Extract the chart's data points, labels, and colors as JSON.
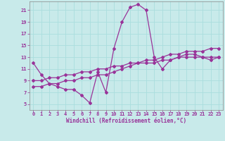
{
  "title": "",
  "xlabel": "Windchill (Refroidissement éolien,°C)",
  "ylabel": "",
  "background_color": "#c8eaea",
  "grid_color": "#aadddd",
  "line_color": "#993399",
  "xlim": [
    -0.5,
    23.5
  ],
  "ylim": [
    4,
    22.5
  ],
  "xticks": [
    0,
    1,
    2,
    3,
    4,
    5,
    6,
    7,
    8,
    9,
    10,
    11,
    12,
    13,
    14,
    15,
    16,
    17,
    18,
    19,
    20,
    21,
    22,
    23
  ],
  "yticks": [
    5,
    7,
    9,
    11,
    13,
    15,
    17,
    19,
    21
  ],
  "line1_x": [
    0,
    1,
    2,
    3,
    4,
    5,
    6,
    7,
    8,
    9,
    10,
    11,
    12,
    13,
    14,
    15,
    16,
    17,
    18,
    19,
    20,
    21,
    22,
    23
  ],
  "line1_y": [
    12,
    10,
    8.5,
    8,
    7.5,
    7.5,
    6.5,
    5.2,
    10.5,
    7,
    14.5,
    19,
    21.5,
    22,
    21,
    13,
    11,
    12.5,
    13,
    13.5,
    13.5,
    13,
    12.5,
    13
  ],
  "line2_x": [
    0,
    1,
    2,
    3,
    4,
    5,
    6,
    7,
    8,
    9,
    10,
    11,
    12,
    13,
    14,
    15,
    16,
    17,
    18,
    19,
    20,
    21,
    22,
    23
  ],
  "line2_y": [
    9,
    9,
    9.5,
    9.5,
    10,
    10,
    10.5,
    10.5,
    11,
    11,
    11.5,
    11.5,
    12,
    12,
    12,
    12,
    12.5,
    12.5,
    13,
    13,
    13,
    13,
    13,
    13
  ],
  "line3_x": [
    0,
    1,
    2,
    3,
    4,
    5,
    6,
    7,
    8,
    9,
    10,
    11,
    12,
    13,
    14,
    15,
    16,
    17,
    18,
    19,
    20,
    21,
    22,
    23
  ],
  "line3_y": [
    8,
    8,
    8.5,
    8.5,
    9,
    9,
    9.5,
    9.5,
    10,
    10,
    10.5,
    11,
    11.5,
    12,
    12.5,
    12.5,
    13,
    13.5,
    13.5,
    14,
    14,
    14,
    14.5,
    14.5
  ]
}
